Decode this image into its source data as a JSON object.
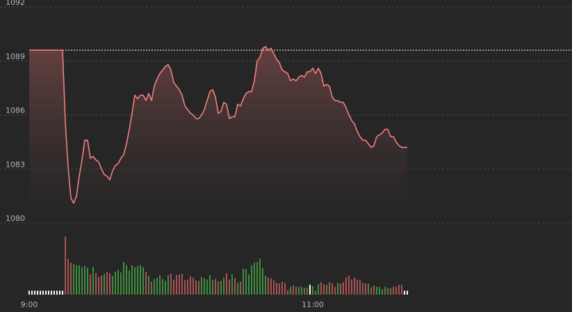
{
  "chart_data": {
    "type": "line",
    "title": "",
    "xlabel": "",
    "ylabel": "",
    "ylim": [
      1080,
      1092
    ],
    "y_ticks": [
      {
        "value": 1092,
        "label": "1092"
      },
      {
        "value": 1089,
        "label": "1089"
      },
      {
        "value": 1086,
        "label": "1086"
      },
      {
        "value": 1083,
        "label": "1083"
      },
      {
        "value": 1080,
        "label": "1080"
      }
    ],
    "x_ticks": [
      {
        "index": 0,
        "label": "9:00"
      },
      {
        "index": 102,
        "label": "11:00"
      }
    ],
    "reference_line": {
      "value": 1089.6,
      "style": "dotted"
    },
    "grid": true,
    "colors": {
      "background": "#262626",
      "grid": "#4a4a4a",
      "price_line": "#f08080",
      "area_top": "#6a4242",
      "volume_up": "#3e8e3e",
      "volume_down": "#a85454",
      "flat_marker": "#ffffff"
    },
    "series": [
      {
        "values": [
          1089.6,
          1089.6,
          1089.6,
          1089.6,
          1089.6,
          1089.6,
          1089.6,
          1089.6,
          1089.6,
          1089.6,
          1089.6,
          1089.6,
          1089.6,
          1085.6,
          1083.1,
          1081.4,
          1081.1,
          1081.5,
          1082.6,
          1083.5,
          1084.6,
          1084.6,
          1083.6,
          1083.7,
          1083.5,
          1083.4,
          1083.0,
          1082.7,
          1082.6,
          1082.4,
          1082.9,
          1083.2,
          1083.3,
          1083.6,
          1083.8,
          1084.4,
          1085.2,
          1086.1,
          1087.1,
          1086.9,
          1087.1,
          1087.1,
          1086.8,
          1087.2,
          1086.8,
          1087.6,
          1088.0,
          1088.3,
          1088.5,
          1088.7,
          1088.8,
          1088.5,
          1087.8,
          1087.6,
          1087.4,
          1087.1,
          1086.5,
          1086.3,
          1086.1,
          1086.0,
          1085.8,
          1085.8,
          1086.0,
          1086.3,
          1086.8,
          1087.3,
          1087.4,
          1087.0,
          1086.1,
          1086.2,
          1086.7,
          1086.6,
          1085.8,
          1085.9,
          1085.9,
          1086.6,
          1086.5,
          1086.9,
          1087.2,
          1087.3,
          1087.3,
          1087.9,
          1089.0,
          1089.2,
          1089.7,
          1089.8,
          1089.6,
          1089.7,
          1089.4,
          1089.1,
          1088.9,
          1088.5,
          1088.4,
          1088.3,
          1087.9,
          1088.0,
          1087.9,
          1088.1,
          1088.2,
          1088.1,
          1088.4,
          1088.4,
          1088.6,
          1088.3,
          1088.6,
          1088.3,
          1087.6,
          1087.7,
          1087.6,
          1087.0,
          1086.8,
          1086.8,
          1086.7,
          1086.7,
          1086.4,
          1086.0,
          1085.7,
          1085.5,
          1085.1,
          1084.8,
          1084.6,
          1084.6,
          1084.4,
          1084.2,
          1084.3,
          1084.8,
          1084.9,
          1085.0,
          1085.2,
          1085.2,
          1084.8,
          1084.8,
          1084.5,
          1084.3,
          1084.2,
          1084.2,
          1084.2
        ]
      }
    ],
    "volume": {
      "values": [
        0.06,
        0.06,
        0.06,
        0.06,
        0.06,
        0.06,
        0.06,
        0.06,
        0.06,
        0.06,
        0.06,
        0.06,
        0.06,
        0.89,
        0.55,
        0.49,
        0.47,
        0.45,
        0.45,
        0.42,
        0.44,
        0.41,
        0.31,
        0.42,
        0.33,
        0.27,
        0.29,
        0.32,
        0.35,
        0.33,
        0.29,
        0.35,
        0.38,
        0.34,
        0.5,
        0.45,
        0.37,
        0.45,
        0.42,
        0.44,
        0.45,
        0.42,
        0.35,
        0.29,
        0.2,
        0.24,
        0.26,
        0.3,
        0.24,
        0.21,
        0.3,
        0.32,
        0.23,
        0.3,
        0.31,
        0.32,
        0.22,
        0.23,
        0.28,
        0.26,
        0.22,
        0.21,
        0.27,
        0.25,
        0.23,
        0.3,
        0.22,
        0.24,
        0.2,
        0.21,
        0.26,
        0.33,
        0.23,
        0.31,
        0.25,
        0.18,
        0.2,
        0.4,
        0.39,
        0.31,
        0.45,
        0.49,
        0.5,
        0.55,
        0.41,
        0.29,
        0.26,
        0.25,
        0.22,
        0.18,
        0.17,
        0.2,
        0.18,
        0.07,
        0.12,
        0.14,
        0.12,
        0.12,
        0.12,
        0.1,
        0.11,
        0.15,
        0.13,
        0.06,
        0.16,
        0.19,
        0.16,
        0.15,
        0.19,
        0.17,
        0.12,
        0.18,
        0.17,
        0.19,
        0.26,
        0.29,
        0.23,
        0.26,
        0.23,
        0.22,
        0.18,
        0.17,
        0.17,
        0.11,
        0.14,
        0.12,
        0.12,
        0.08,
        0.12,
        0.1,
        0.1,
        0.12,
        0.12,
        0.15,
        0.15,
        0.06,
        0.06
      ],
      "direction": [
        "flat",
        "flat",
        "flat",
        "flat",
        "flat",
        "flat",
        "flat",
        "flat",
        "flat",
        "flat",
        "flat",
        "flat",
        "flat",
        "down",
        "down",
        "down",
        "up",
        "up",
        "up",
        "up",
        "up",
        "up",
        "down",
        "up",
        "down",
        "down",
        "down",
        "up",
        "down",
        "down",
        "up",
        "up",
        "up",
        "up",
        "up",
        "up",
        "up",
        "up",
        "up",
        "up",
        "up",
        "up",
        "down",
        "up",
        "down",
        "up",
        "up",
        "up",
        "up",
        "up",
        "up",
        "down",
        "down",
        "down",
        "down",
        "down",
        "down",
        "down",
        "down",
        "down",
        "down",
        "down",
        "up",
        "up",
        "up",
        "up",
        "up",
        "down",
        "down",
        "up",
        "up",
        "down",
        "down",
        "up",
        "down",
        "up",
        "down",
        "up",
        "up",
        "up",
        "up",
        "up",
        "up",
        "up",
        "up",
        "up",
        "down",
        "down",
        "down",
        "down",
        "down",
        "down",
        "down",
        "down",
        "up",
        "down",
        "down",
        "up",
        "up",
        "down",
        "up",
        "flat",
        "up",
        "down",
        "up",
        "down",
        "down",
        "up",
        "down",
        "down",
        "down",
        "up",
        "down",
        "down",
        "down",
        "down",
        "down",
        "down",
        "down",
        "down",
        "down",
        "down",
        "up",
        "down",
        "down",
        "up",
        "up",
        "up",
        "up",
        "down",
        "up",
        "down",
        "down",
        "down",
        "down",
        "flat",
        "flat"
      ]
    }
  }
}
